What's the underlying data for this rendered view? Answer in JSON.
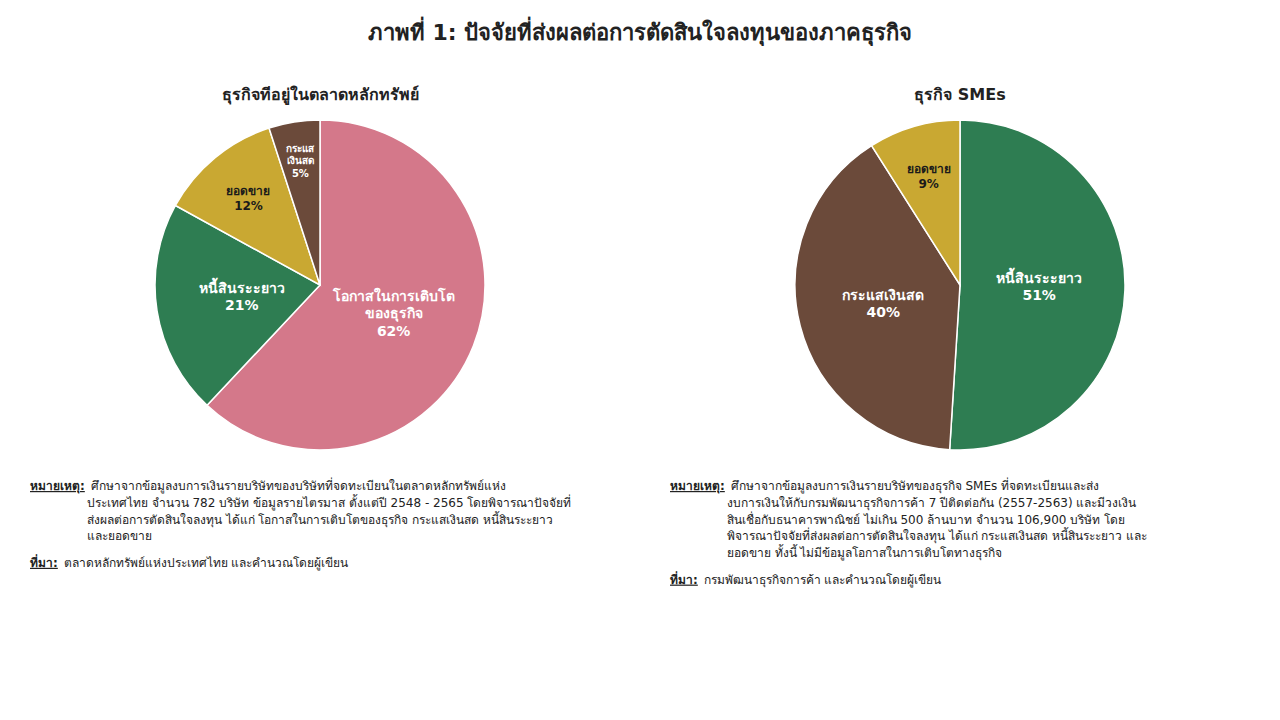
{
  "title": "ภาพที่ 1: ปัจจัยที่ส่งผลต่อการตัดสินใจลงทุนของภาคธุรกิจ",
  "chart_data": [
    {
      "type": "pie",
      "title": "ธุรกิจทีอยู่ในตลาดหลักทรัพย์",
      "categories": [
        "โอกาสในการเติบโต\nของธุรกิจ",
        "หนี้สินระะยาว",
        "ยอดขาย",
        "กระแส\nเงินสด"
      ],
      "values": [
        62,
        21,
        12,
        5
      ],
      "value_labels": [
        "62%",
        "21%",
        "12%",
        "5%"
      ],
      "colors": [
        "#D4788A",
        "#2E7D52",
        "#C9A832",
        "#6B4A3A"
      ],
      "data_labels": true,
      "annotations": [
        {
          "label": "หมายเหตุ:",
          "text": " ศึกษาจากข้อมูลงบการเงินรายบริษัทของบริษัทที่จดทะเบียนในตลาดหลักทรัพย์แห่ง\nประเทศไทย จำนวน 782 บริษัท ข้อมูลรายไตรมาส ตั้งแต่ปี 2548 - 2565 โดยพิจารณาปัจจัยที่\nส่งผลต่อการตัดสินใจลงทุน ได้แก่ โอกาสในการเติบโตของธุรกิจ กระแสเงินสด หนี้สินระะยาว\nและยอดขาย"
        },
        {
          "label": "ที่มา:",
          "text": " ตลาดหลักทรัพย์แห่งประเทศไทย และคำนวณโดยผู้เขียน"
        }
      ]
    },
    {
      "type": "pie",
      "title": "ธุรกิจ SMEs",
      "categories": [
        "หนี้สินระะยาว",
        "กระแสเงินสด",
        "ยอดขาย"
      ],
      "values": [
        51,
        40,
        9
      ],
      "value_labels": [
        "51%",
        "40%",
        "9%"
      ],
      "colors": [
        "#2E7D52",
        "#6B4A3A",
        "#C9A832"
      ],
      "data_labels": true,
      "annotations": [
        {
          "label": "หมายเหตุ:",
          "text": " ศึกษาจากข้อมูลงบการเงินรายบริษัทของธุรกิจ SMEs ที่จดทะเบียนและส่ง\nงบการเงินให้กับกรมพัฒนาธุรกิจการค้า 7 ปีติดต่อกัน (2557-2563) และมีวงเงิน\nสินเชื่อกับธนาคารพาณิชย์ ไม่เกิน 500 ล้านบาท จำนวน 106,900 บริษัท โดย\nพิจารณาปัจจัยที่ส่งผลต่อการตัดสินใจลงทุน ได้แก่ กระแสเงินสด หนี้สินระะยาว และ\nยอดขาย ทั้งนี้ ไม่มีข้อมูลโอกาสในการเติบโตทางธุรกิจ"
        },
        {
          "label": "ที่มา:",
          "text": " กรมพัฒนาธุรกิจการค้า และคำนวณโดยผู้เขียน"
        }
      ]
    }
  ]
}
